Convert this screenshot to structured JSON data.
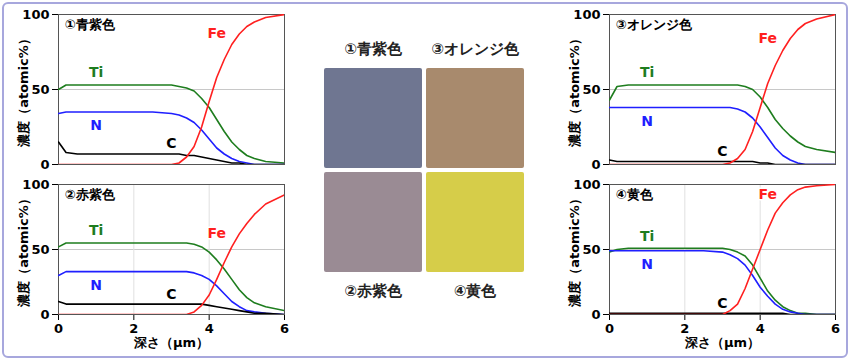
{
  "chart_data": [
    {
      "type": "line",
      "title": "①青紫色",
      "ylabel": "濃度（atomic%）",
      "x": [
        0,
        0.2,
        0.5,
        1,
        1.5,
        2,
        2.5,
        3,
        3.2,
        3.4,
        3.6,
        3.8,
        4,
        4.2,
        4.4,
        4.6,
        4.8,
        5,
        5.2,
        5.5,
        6
      ],
      "xlim": [
        0,
        6
      ],
      "ylim": [
        0,
        100
      ],
      "yticks": [
        0,
        50,
        100
      ],
      "grid": true,
      "tick_labels": "y",
      "series": [
        {
          "name": "Ti",
          "color": "#1e7d1e",
          "values": [
            50,
            53,
            53,
            53,
            53,
            53,
            53,
            53,
            52,
            51,
            49,
            44,
            38,
            30,
            22,
            15,
            10,
            6,
            4,
            2,
            1
          ]
        },
        {
          "name": "N",
          "color": "#1f1fff",
          "values": [
            34,
            35,
            35,
            35,
            35,
            35,
            35,
            34,
            33,
            31,
            28,
            23,
            17,
            11,
            7,
            4,
            2,
            1,
            0,
            0,
            0
          ]
        },
        {
          "name": "C",
          "color": "#000000",
          "values": [
            15,
            8,
            7,
            7,
            7,
            7,
            7,
            7,
            7,
            6,
            6,
            5,
            4,
            3,
            2,
            1,
            1,
            0,
            0,
            0,
            0
          ]
        },
        {
          "name": "Fe",
          "color": "#ff2020",
          "values": [
            0,
            0,
            0,
            0,
            0,
            0,
            0,
            0,
            1,
            5,
            12,
            25,
            42,
            58,
            70,
            80,
            87,
            92,
            95,
            98,
            100
          ]
        }
      ]
    },
    {
      "type": "line",
      "title": "②赤紫色",
      "ylabel": "濃度（atomic%）",
      "xlabel": "深さ（μm）",
      "x": [
        0,
        0.2,
        0.5,
        1,
        1.5,
        2,
        2.5,
        3,
        3.2,
        3.4,
        3.6,
        3.8,
        4,
        4.2,
        4.4,
        4.6,
        4.8,
        5,
        5.2,
        5.5,
        6
      ],
      "xlim": [
        0,
        6
      ],
      "xticks": [
        0,
        2,
        4,
        6
      ],
      "ylim": [
        0,
        100
      ],
      "yticks": [
        0,
        50,
        100
      ],
      "grid": true,
      "series": [
        {
          "name": "Ti",
          "color": "#1e7d1e",
          "values": [
            52,
            55,
            55,
            55,
            55,
            55,
            55,
            55,
            55,
            55,
            54,
            52,
            48,
            42,
            35,
            27,
            19,
            13,
            9,
            6,
            3
          ]
        },
        {
          "name": "N",
          "color": "#1f1fff",
          "values": [
            30,
            33,
            33,
            33,
            33,
            33,
            33,
            33,
            33,
            33,
            32,
            30,
            27,
            22,
            16,
            10,
            6,
            3,
            2,
            1,
            0
          ]
        },
        {
          "name": "C",
          "color": "#000000",
          "values": [
            10,
            8,
            8,
            8,
            8,
            8,
            8,
            8,
            8,
            8,
            8,
            8,
            7,
            6,
            5,
            4,
            3,
            2,
            1,
            1,
            0
          ]
        },
        {
          "name": "Fe",
          "color": "#ff2020",
          "values": [
            0,
            0,
            0,
            0,
            0,
            0,
            0,
            0,
            0,
            0,
            2,
            7,
            15,
            27,
            40,
            52,
            62,
            70,
            77,
            85,
            92
          ]
        }
      ]
    },
    {
      "type": "line",
      "title": "③オレンジ色",
      "ylabel": "濃度（atomic%）",
      "x": [
        0,
        0.2,
        0.5,
        1,
        1.5,
        2,
        2.5,
        3,
        3.2,
        3.4,
        3.6,
        3.8,
        4,
        4.2,
        4.4,
        4.6,
        4.8,
        5,
        5.2,
        5.5,
        6
      ],
      "xlim": [
        0,
        6
      ],
      "ylim": [
        0,
        100
      ],
      "yticks": [
        0,
        50,
        100
      ],
      "grid": true,
      "tick_labels": "y",
      "series": [
        {
          "name": "Ti",
          "color": "#1e7d1e",
          "values": [
            43,
            52,
            53,
            53,
            53,
            53,
            53,
            53,
            53,
            53,
            52,
            50,
            45,
            38,
            30,
            24,
            19,
            15,
            12,
            10,
            8
          ]
        },
        {
          "name": "N",
          "color": "#1f1fff",
          "values": [
            38,
            38,
            38,
            38,
            38,
            38,
            38,
            38,
            38,
            37,
            35,
            31,
            25,
            18,
            11,
            6,
            3,
            1,
            0,
            0,
            0
          ]
        },
        {
          "name": "C",
          "color": "#000000",
          "values": [
            3,
            2,
            2,
            2,
            2,
            2,
            2,
            2,
            2,
            2,
            2,
            2,
            1,
            1,
            0,
            0,
            0,
            0,
            0,
            0,
            0
          ]
        },
        {
          "name": "Fe",
          "color": "#ff2020",
          "values": [
            0,
            0,
            0,
            0,
            0,
            0,
            0,
            0,
            1,
            4,
            10,
            22,
            38,
            54,
            66,
            76,
            84,
            90,
            94,
            97,
            100
          ]
        }
      ]
    },
    {
      "type": "line",
      "title": "④黄色",
      "ylabel": "濃度（atomic%）",
      "xlabel": "深さ（μm）",
      "x": [
        0,
        0.2,
        0.5,
        1,
        1.5,
        2,
        2.5,
        3,
        3.2,
        3.4,
        3.6,
        3.8,
        4,
        4.2,
        4.4,
        4.6,
        4.8,
        5,
        5.2,
        5.5,
        6
      ],
      "xlim": [
        0,
        6
      ],
      "xticks": [
        0,
        2,
        4,
        6
      ],
      "ylim": [
        0,
        100
      ],
      "yticks": [
        0,
        50,
        100
      ],
      "grid": true,
      "series": [
        {
          "name": "Ti",
          "color": "#1e7d1e",
          "values": [
            48,
            50,
            51,
            51,
            51,
            51,
            51,
            51,
            50,
            48,
            45,
            38,
            28,
            18,
            11,
            6,
            3,
            1,
            1,
            0,
            0
          ]
        },
        {
          "name": "N",
          "color": "#1f1fff",
          "values": [
            49,
            49,
            49,
            49,
            49,
            49,
            49,
            48,
            46,
            43,
            38,
            30,
            21,
            14,
            8,
            4,
            2,
            1,
            0,
            0,
            0
          ]
        },
        {
          "name": "C",
          "color": "#000000",
          "values": [
            1,
            1,
            1,
            1,
            1,
            1,
            1,
            1,
            1,
            1,
            1,
            1,
            1,
            1,
            1,
            1,
            0,
            0,
            0,
            0,
            0
          ]
        },
        {
          "name": "Fe",
          "color": "#ff2020",
          "values": [
            0,
            0,
            0,
            0,
            0,
            0,
            0,
            0,
            3,
            8,
            20,
            35,
            50,
            65,
            78,
            86,
            92,
            96,
            98,
            99,
            100
          ]
        }
      ]
    }
  ],
  "photo": {
    "swatches": [
      {
        "label": "①青紫色",
        "color": "#6f7691"
      },
      {
        "label": "③オレンジ色",
        "color": "#a88a6d"
      },
      {
        "label": "②赤紫色",
        "color": "#9a8b94"
      },
      {
        "label": "④黄色",
        "color": "#d6cd49"
      }
    ]
  }
}
